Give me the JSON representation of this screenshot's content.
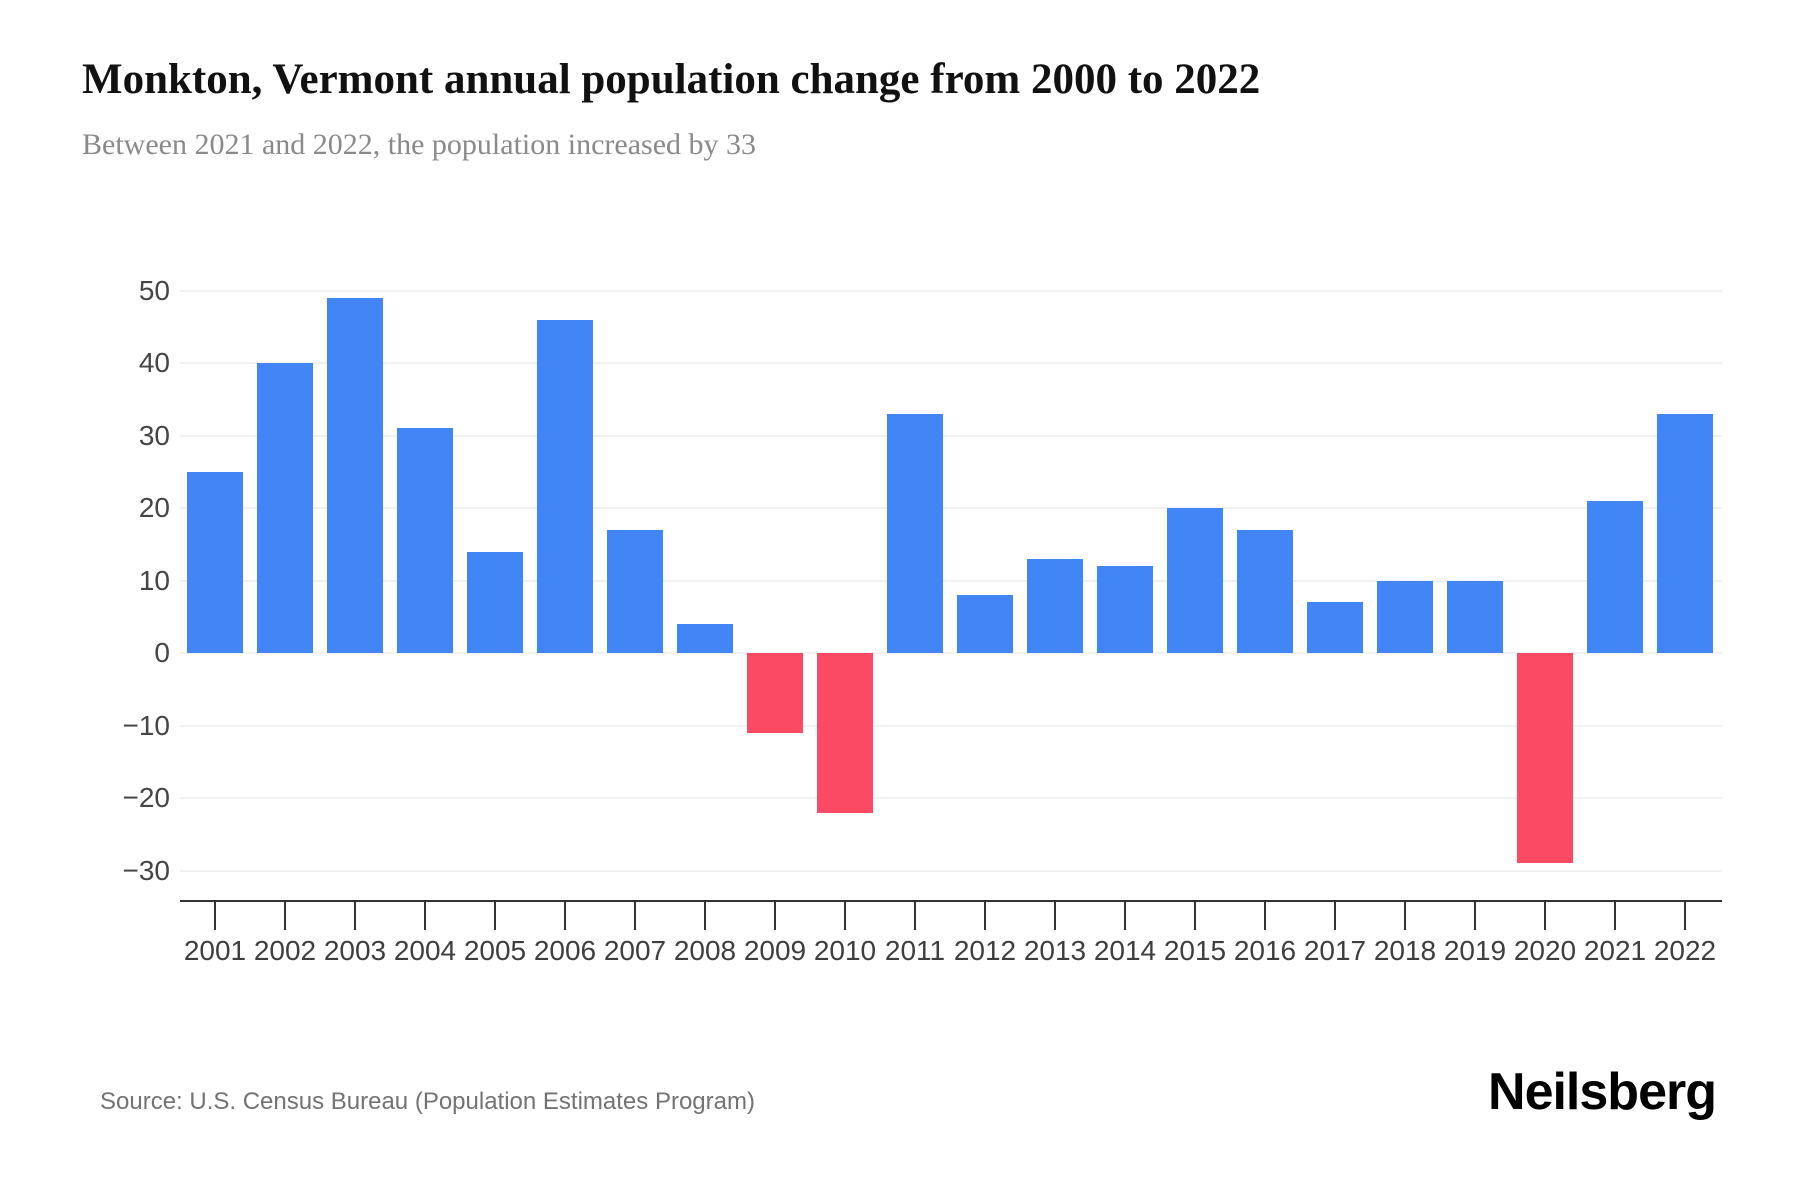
{
  "header": {
    "title": "Monkton, Vermont annual population change from 2000 to 2022",
    "subtitle": "Between 2021 and 2022, the population increased by 33"
  },
  "footer": {
    "source": "Source: U.S. Census Bureau (Population Estimates Program)",
    "brand": "Neilsberg"
  },
  "chart_data": {
    "type": "bar",
    "title": "Monkton, Vermont annual population change from 2000 to 2022",
    "subtitle": "Between 2021 and 2022, the population increased by 33",
    "series_name": "Annual population change",
    "categories": [
      "2001",
      "2002",
      "2003",
      "2004",
      "2005",
      "2006",
      "2007",
      "2008",
      "2009",
      "2010",
      "2011",
      "2012",
      "2013",
      "2014",
      "2015",
      "2016",
      "2017",
      "2018",
      "2019",
      "2020",
      "2021",
      "2022"
    ],
    "values": [
      25,
      40,
      49,
      31,
      14,
      46,
      17,
      4,
      -11,
      -22,
      33,
      8,
      13,
      12,
      20,
      17,
      7,
      10,
      10,
      -29,
      21,
      33
    ],
    "ylim": [
      -30,
      50
    ],
    "y_ticks": [
      {
        "value": 50,
        "label": "50"
      },
      {
        "value": 40,
        "label": "40"
      },
      {
        "value": 30,
        "label": "30"
      },
      {
        "value": 20,
        "label": "20"
      },
      {
        "value": 10,
        "label": "10"
      },
      {
        "value": 0,
        "label": "0"
      },
      {
        "value": -10,
        "label": "−10"
      },
      {
        "value": -20,
        "label": "−20"
      },
      {
        "value": -30,
        "label": "−30"
      }
    ],
    "grid": true,
    "legend": "none",
    "colors": {
      "positive": "#4285F4",
      "negative": "#FA4A64",
      "gridline": "#f1f1f1",
      "axis": "#333333",
      "tick_label": "#454545"
    }
  }
}
